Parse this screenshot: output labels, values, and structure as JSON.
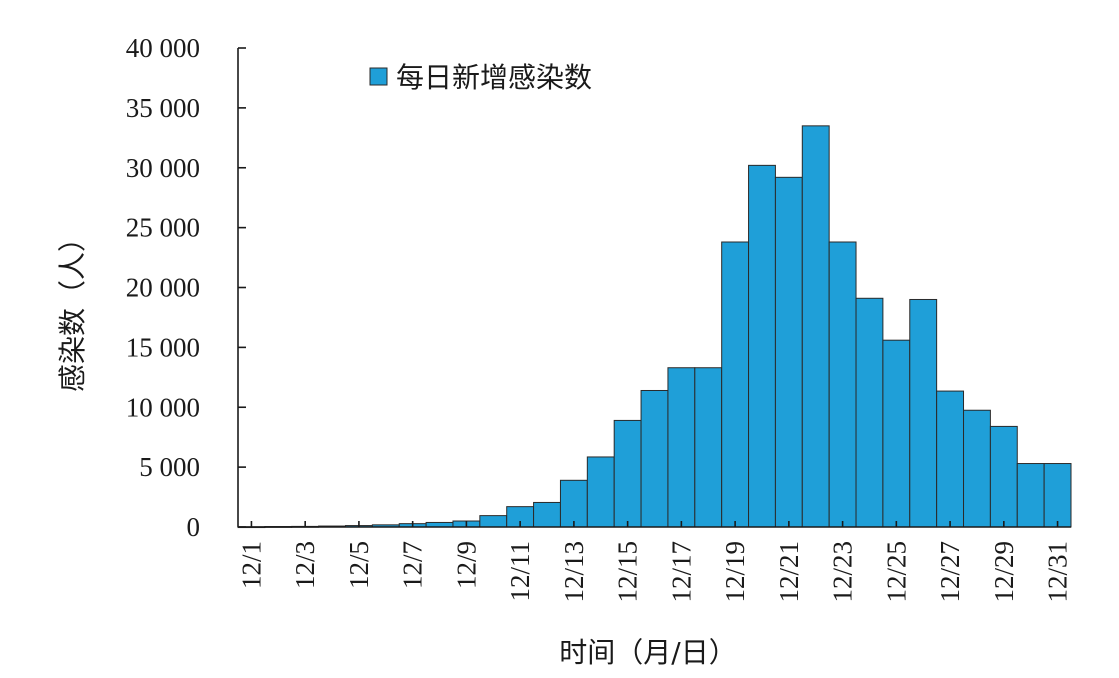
{
  "chart_data": {
    "type": "bar",
    "categories": [
      "12/1",
      "12/2",
      "12/3",
      "12/4",
      "12/5",
      "12/6",
      "12/7",
      "12/8",
      "12/9",
      "12/10",
      "12/11",
      "12/12",
      "12/13",
      "12/14",
      "12/15",
      "12/16",
      "12/17",
      "12/18",
      "12/19",
      "12/20",
      "12/21",
      "12/22",
      "12/23",
      "12/24",
      "12/25",
      "12/26",
      "12/27",
      "12/28",
      "12/29",
      "12/30",
      "12/31"
    ],
    "x_tick_labels": [
      "12/1",
      "12/3",
      "12/5",
      "12/7",
      "12/9",
      "12/11",
      "12/13",
      "12/15",
      "12/17",
      "12/19",
      "12/21",
      "12/23",
      "12/25",
      "12/27",
      "12/29",
      "12/31"
    ],
    "series": [
      {
        "name": "每日新增感染数",
        "values": [
          20,
          40,
          50,
          80,
          120,
          180,
          280,
          380,
          500,
          950,
          1700,
          2050,
          3900,
          5850,
          8900,
          11400,
          13300,
          13300,
          23800,
          30200,
          29200,
          33500,
          23800,
          19100,
          15600,
          19000,
          11350,
          9750,
          8400,
          5300,
          5300
        ]
      }
    ],
    "y_ticks": [
      0,
      5000,
      10000,
      15000,
      20000,
      25000,
      30000,
      35000,
      40000
    ],
    "y_tick_labels": [
      "0",
      "5 000",
      "10 000",
      "15 000",
      "20 000",
      "25 000",
      "30 000",
      "35 000",
      "40 000"
    ],
    "ylim": [
      0,
      40000
    ],
    "xlabel": "时间（月/日）",
    "ylabel": "感染数（人）",
    "title": "",
    "legend_position": "top-center",
    "bar_color": "#1f9fd8",
    "grid": false
  }
}
